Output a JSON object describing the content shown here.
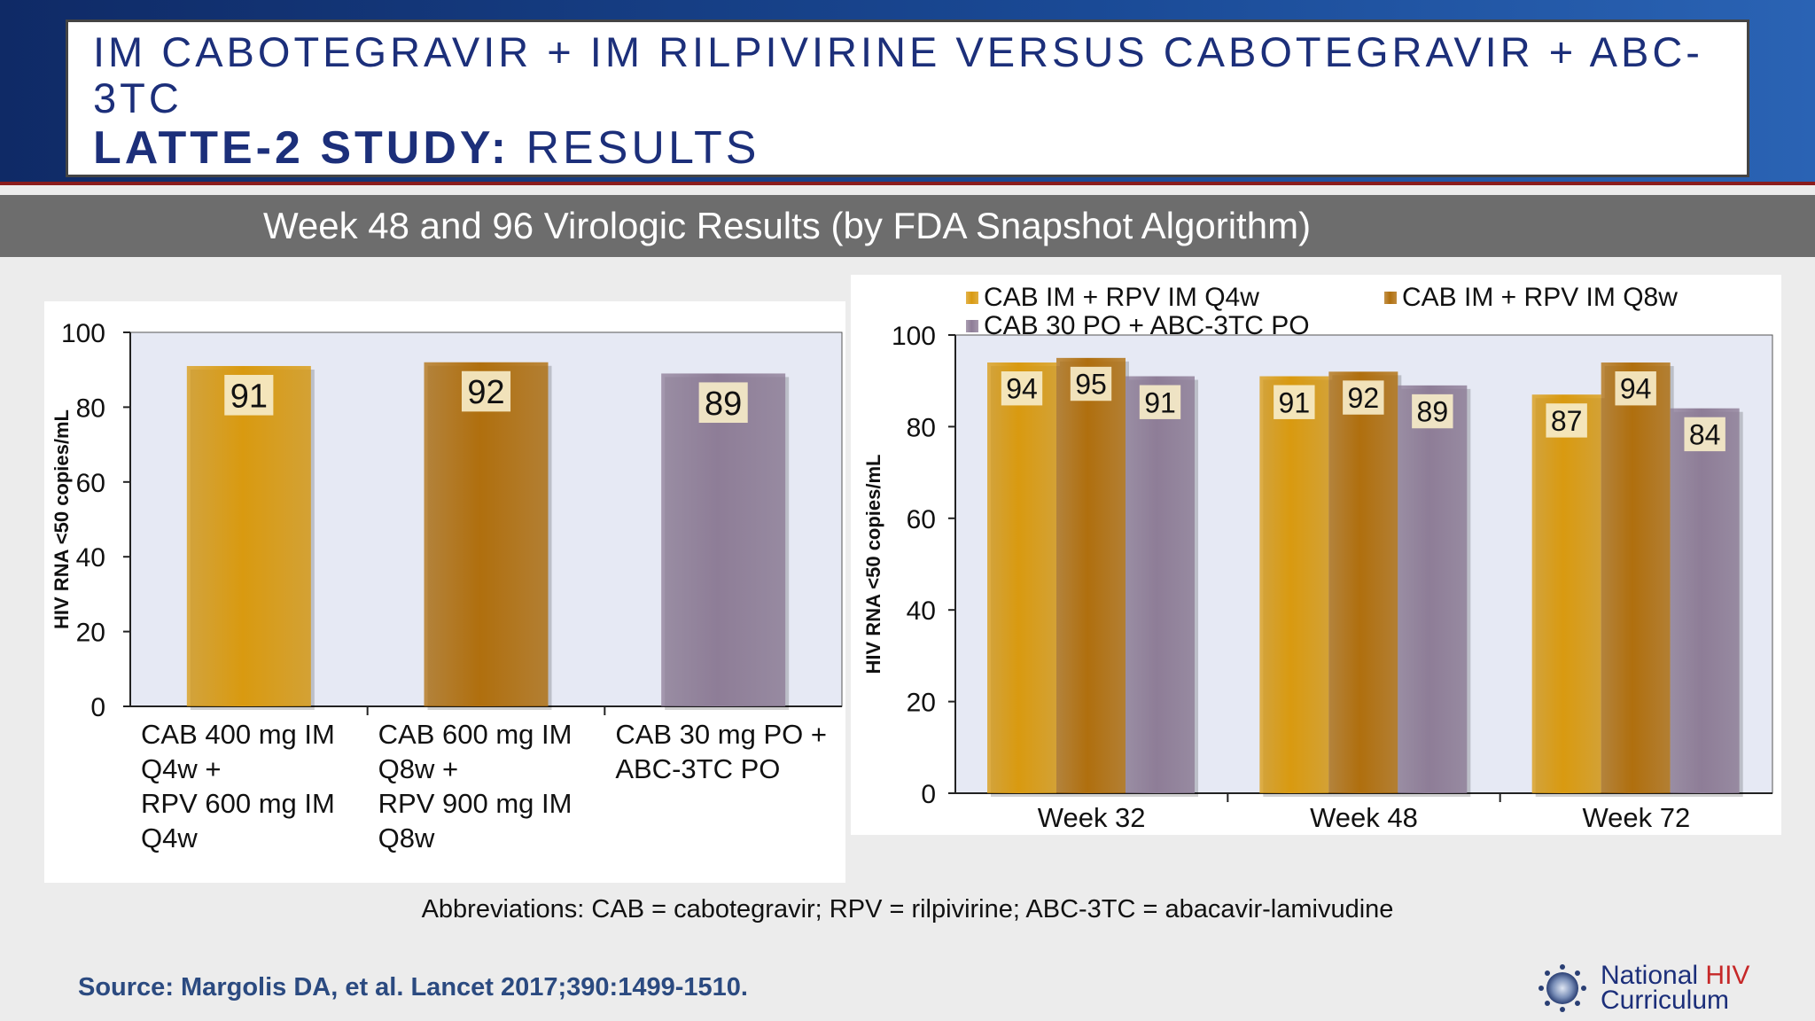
{
  "header": {
    "title_line1": "IM CABOTEGRAVIR + IM RILPIVIRINE VERSUS CABOTEGRAVIR + ABC-3TC",
    "title_bold": "LATTE-2 STUDY:",
    "title_rest": " RESULTS"
  },
  "subtitle": "Week 48  and 96 Virologic Results (by FDA Snapshot Algorithm)",
  "colors": {
    "q4w": "#d99a10",
    "q8w": "#b06f0e",
    "po": "#8e7d97",
    "plot_bg": "#e6e9f4",
    "label_bg": "#f6ecc8"
  },
  "chart_data": [
    {
      "type": "bar",
      "ylabel": "HIV RNA <50 copies/mL",
      "ylim": [
        0,
        100
      ],
      "yticks": [
        "0",
        "20",
        "40",
        "60",
        "80",
        "100"
      ],
      "categories": [
        [
          "CAB 400 mg IM",
          "Q4w +",
          "RPV 600 mg IM",
          "Q4w"
        ],
        [
          "CAB 600 mg IM",
          "Q8w +",
          "RPV 900 mg IM",
          "Q8w"
        ],
        [
          "CAB 30 mg PO +",
          "ABC-3TC  PO"
        ]
      ],
      "values": [
        91,
        92,
        89
      ],
      "labels": [
        "91",
        "92",
        "89"
      ]
    },
    {
      "type": "bar",
      "ylabel": "HIV RNA <50 copies/mL",
      "ylim": [
        0,
        100
      ],
      "yticks": [
        "0",
        "20",
        "40",
        "60",
        "80",
        "100"
      ],
      "categories": [
        "Week 32",
        "Week 48",
        "Week 72"
      ],
      "legend": [
        "CAB IM + RPV IM  Q4w",
        "CAB IM + RPV IM  Q8w",
        "CAB 30 PO + ABC-3TC  PO"
      ],
      "series": [
        {
          "name": "CAB IM + RPV IM  Q4w",
          "values": [
            94,
            91,
            87
          ]
        },
        {
          "name": "CAB IM + RPV IM  Q8w",
          "values": [
            95,
            92,
            94
          ]
        },
        {
          "name": "CAB 30 PO + ABC-3TC  PO",
          "values": [
            91,
            89,
            84
          ]
        }
      ]
    }
  ],
  "footer": {
    "abbreviations": "Abbreviations: CAB = cabotegravir; RPV = rilpivirine; ABC-3TC = abacavir-lamivudine",
    "source": "Source: Margolis DA, et al. Lancet 2017;390:1499-1510.",
    "logo_word1": "National ",
    "logo_word2": "HIV",
    "logo_word3": "Curriculum"
  }
}
